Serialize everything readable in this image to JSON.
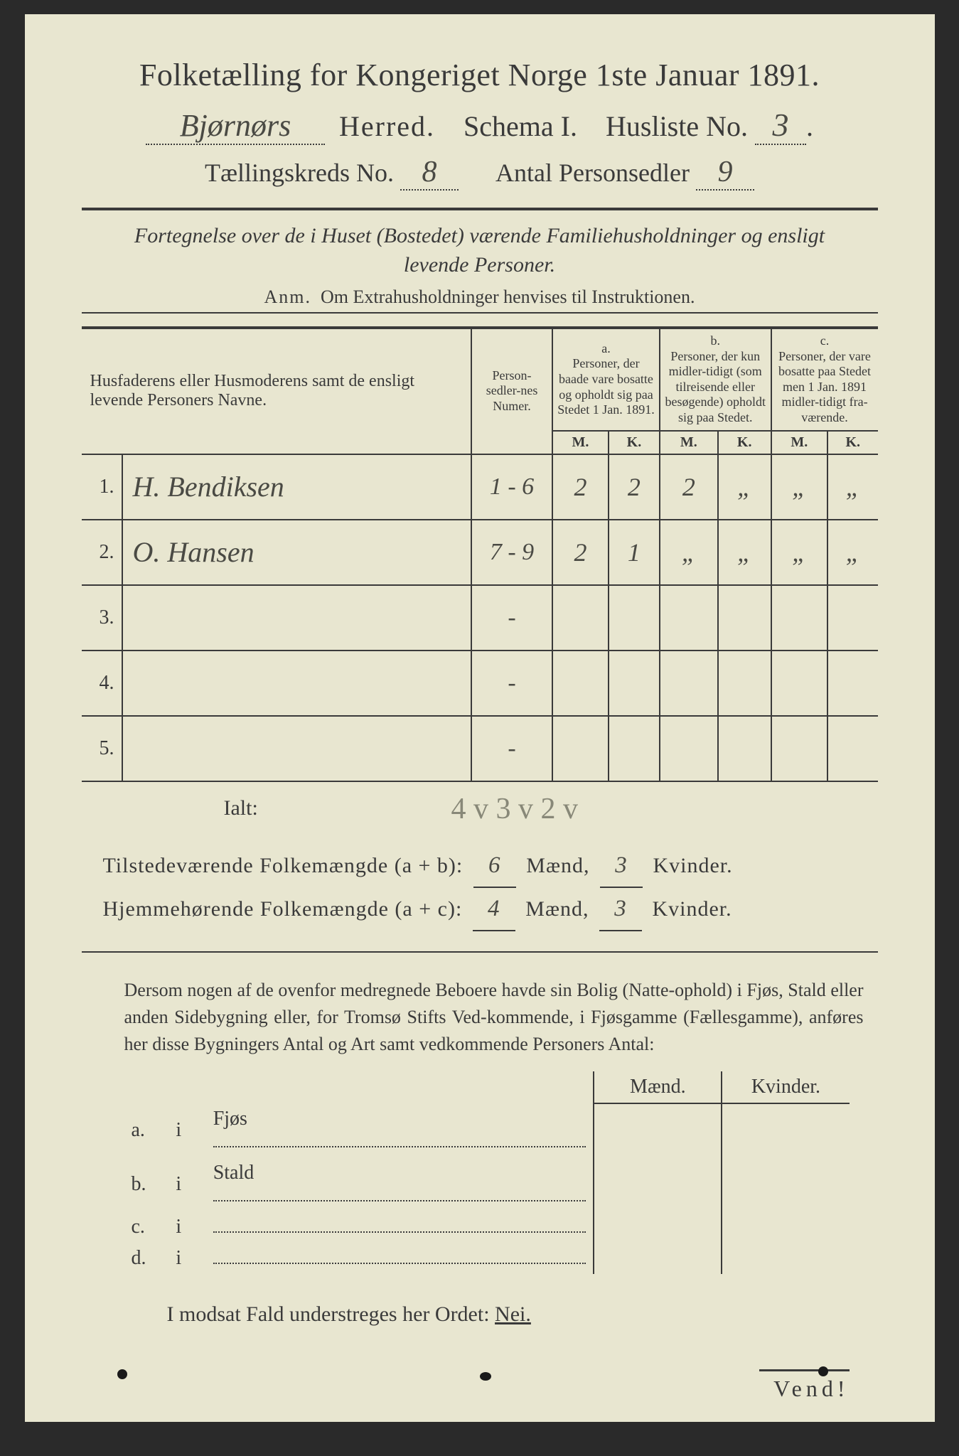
{
  "colors": {
    "page_bg": "#e8e6d0",
    "ink": "#3a3a3a",
    "handwriting": "#4a4a44",
    "pencil": "#888878",
    "outer_bg": "#2a2a2a"
  },
  "header": {
    "title": "Folketælling for Kongeriget Norge 1ste Januar 1891.",
    "herred_value": "Bjørnørs",
    "herred_label": "Herred.",
    "schema_label": "Schema I.",
    "husliste_label": "Husliste No.",
    "husliste_value": "3",
    "kreds_label": "Tællingskreds No.",
    "kreds_value": "8",
    "antal_label": "Antal Personsedler",
    "antal_value": "9"
  },
  "subheading": {
    "line1": "Fortegnelse over de i Huset (Bostedet) værende Familiehusholdninger og ensligt",
    "line2": "levende Personer.",
    "anm_label": "Anm.",
    "anm_text": "Om Extrahusholdninger henvises til Instruktionen."
  },
  "table": {
    "col_names": "Husfaderens eller Husmoderens samt de ensligt levende Personers Navne.",
    "col_numer": "Person-sedler-nes Numer.",
    "col_a_tag": "a.",
    "col_a": "Personer, der baade vare bosatte og opholdt sig paa Stedet 1 Jan. 1891.",
    "col_b_tag": "b.",
    "col_b": "Personer, der kun midler-tidigt (som tilreisende eller besøgende) opholdt sig paa Stedet.",
    "col_c_tag": "c.",
    "col_c": "Personer, der vare bosatte paa Stedet men 1 Jan. 1891 midler-tidigt fra-værende.",
    "M": "M.",
    "K": "K.",
    "rows": [
      {
        "n": "1.",
        "name": "H. Bendiksen",
        "numer": "1 - 6",
        "aM": "2",
        "aK": "2",
        "bM": "2",
        "bK": "„",
        "cM": "„",
        "cK": "„"
      },
      {
        "n": "2.",
        "name": "O. Hansen",
        "numer": "7 - 9",
        "aM": "2",
        "aK": "1",
        "bM": "„",
        "bK": "„",
        "cM": "„",
        "cK": "„"
      },
      {
        "n": "3.",
        "name": "",
        "numer": "-",
        "aM": "",
        "aK": "",
        "bM": "",
        "bK": "",
        "cM": "",
        "cK": ""
      },
      {
        "n": "4.",
        "name": "",
        "numer": "-",
        "aM": "",
        "aK": "",
        "bM": "",
        "bK": "",
        "cM": "",
        "cK": ""
      },
      {
        "n": "5.",
        "name": "",
        "numer": "-",
        "aM": "",
        "aK": "",
        "bM": "",
        "bK": "",
        "cM": "",
        "cK": ""
      }
    ],
    "ialt": "Ialt:",
    "pencil_ialt": "4 v 3 v 2 v"
  },
  "totals": {
    "line1_label": "Tilstedeværende Folkemængde (a + b):",
    "line1_m": "6",
    "line2_label": "Hjemmehørende Folkemængde (a + c):",
    "line2_m": "4",
    "maend": "Mænd,",
    "kvinder": "Kvinder.",
    "line1_k": "3",
    "line2_k": "3"
  },
  "bottom_para": "Dersom nogen af de ovenfor medregnede Beboere havde sin Bolig (Natte-ophold) i Fjøs, Stald eller anden Sidebygning eller, for Tromsø Stifts Ved-kommende, i Fjøsgamme (Fællesgamme), anføres her disse Bygningers Antal og Art samt vedkommende Personers Antal:",
  "bottom_table": {
    "maend": "Mænd.",
    "kvinder": "Kvinder.",
    "rows": [
      {
        "l": "a.",
        "i": "i",
        "t": "Fjøs"
      },
      {
        "l": "b.",
        "i": "i",
        "t": "Stald"
      },
      {
        "l": "c.",
        "i": "i",
        "t": ""
      },
      {
        "l": "d.",
        "i": "i",
        "t": ""
      }
    ]
  },
  "nei_line": {
    "pre": "I modsat Fald understreges her Ordet: ",
    "word": "Nei."
  },
  "vend": "Vend!"
}
